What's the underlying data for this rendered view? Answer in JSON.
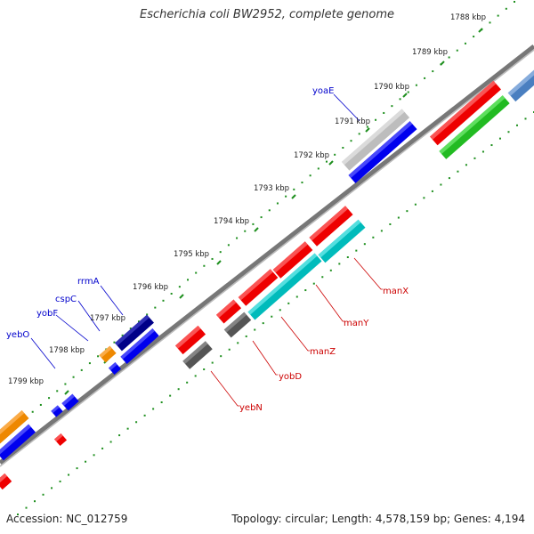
{
  "title": "Escherichia coli BW2952, complete genome",
  "footer": {
    "accession": "Accession: NC_012759",
    "topology": "Topology: circular; Length: 4,578,159 bp; Genes: 4,194"
  },
  "colors": {
    "backbone": "#888888",
    "tick": "#1e8f1e",
    "label_blue": "#0000cc",
    "label_red": "#cc0000"
  },
  "kbp_labels": [
    "1788 kbp",
    "1789 kbp",
    "1790 kbp",
    "1791 kbp",
    "1792 kbp",
    "1793 kbp",
    "1794 kbp",
    "1795 kbp",
    "1796 kbp",
    "1797 kbp",
    "1798 kbp",
    "1799 kbp"
  ],
  "gene_labels_top": [
    "yoaE",
    "rrmA",
    "cspC",
    "yobF",
    "yebO"
  ],
  "gene_labels_bottom": [
    "manX",
    "manY",
    "manZ",
    "yobD",
    "yebN"
  ]
}
